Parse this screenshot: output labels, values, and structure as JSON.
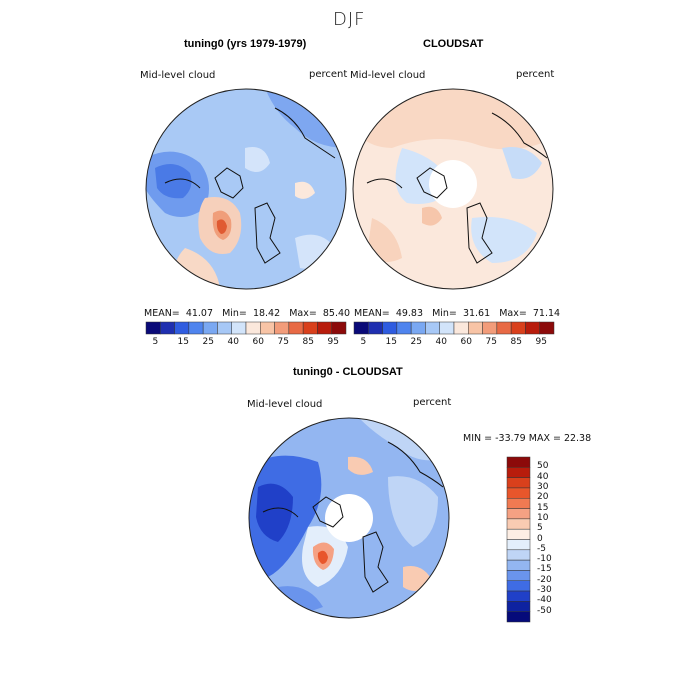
{
  "figure": {
    "title": "DJF"
  },
  "panel_left": {
    "title": "tuning0 (yrs 1979-1979)",
    "variable": "Mid-level cloud",
    "units": "percent",
    "stats": {
      "mean_label": "MEAN=",
      "mean": "41.07",
      "min_label": "Min=",
      "min": "18.42",
      "max_label": "Max=",
      "max": "85.40"
    }
  },
  "panel_right": {
    "title": "CLOUDSAT",
    "variable": "Mid-level cloud",
    "units": "percent",
    "stats": {
      "mean_label": "MEAN=",
      "mean": "49.83",
      "min_label": "Min=",
      "min": "31.61",
      "max_label": "Max=",
      "max": "71.14"
    }
  },
  "panel_diff": {
    "title": "tuning0 - CLOUDSAT",
    "variable": "Mid-level cloud",
    "units": "percent",
    "minmax": "MIN = -33.79 MAX =  22.38"
  },
  "colorbar_abs": {
    "colors": [
      "#0a0a78",
      "#1f2fb0",
      "#2f5ce0",
      "#4f84ee",
      "#7aa8f2",
      "#a7c8f6",
      "#d2e4fa",
      "#fbe8dc",
      "#f8c4a6",
      "#f29c7a",
      "#e86a45",
      "#d9401c",
      "#b81c0c",
      "#8c0a0a"
    ],
    "labels": [
      "5",
      "15",
      "25",
      "40",
      "60",
      "75",
      "85",
      "95"
    ]
  },
  "colorbar_diff": {
    "colors": [
      "#8c0a0a",
      "#b81c0c",
      "#d9401c",
      "#e8562b",
      "#f07a52",
      "#f5a183",
      "#f9cbb2",
      "#fdeee4",
      "#e3eefb",
      "#bfd5f6",
      "#93b6f1",
      "#6a94ec",
      "#3f6ce4",
      "#2040c8",
      "#0e22a0",
      "#050a7a"
    ],
    "labels": [
      "50",
      "40",
      "30",
      "20",
      "15",
      "10",
      "5",
      "0",
      "-5",
      "-10",
      "-15",
      "-20",
      "-30",
      "-40",
      "-50"
    ]
  }
}
